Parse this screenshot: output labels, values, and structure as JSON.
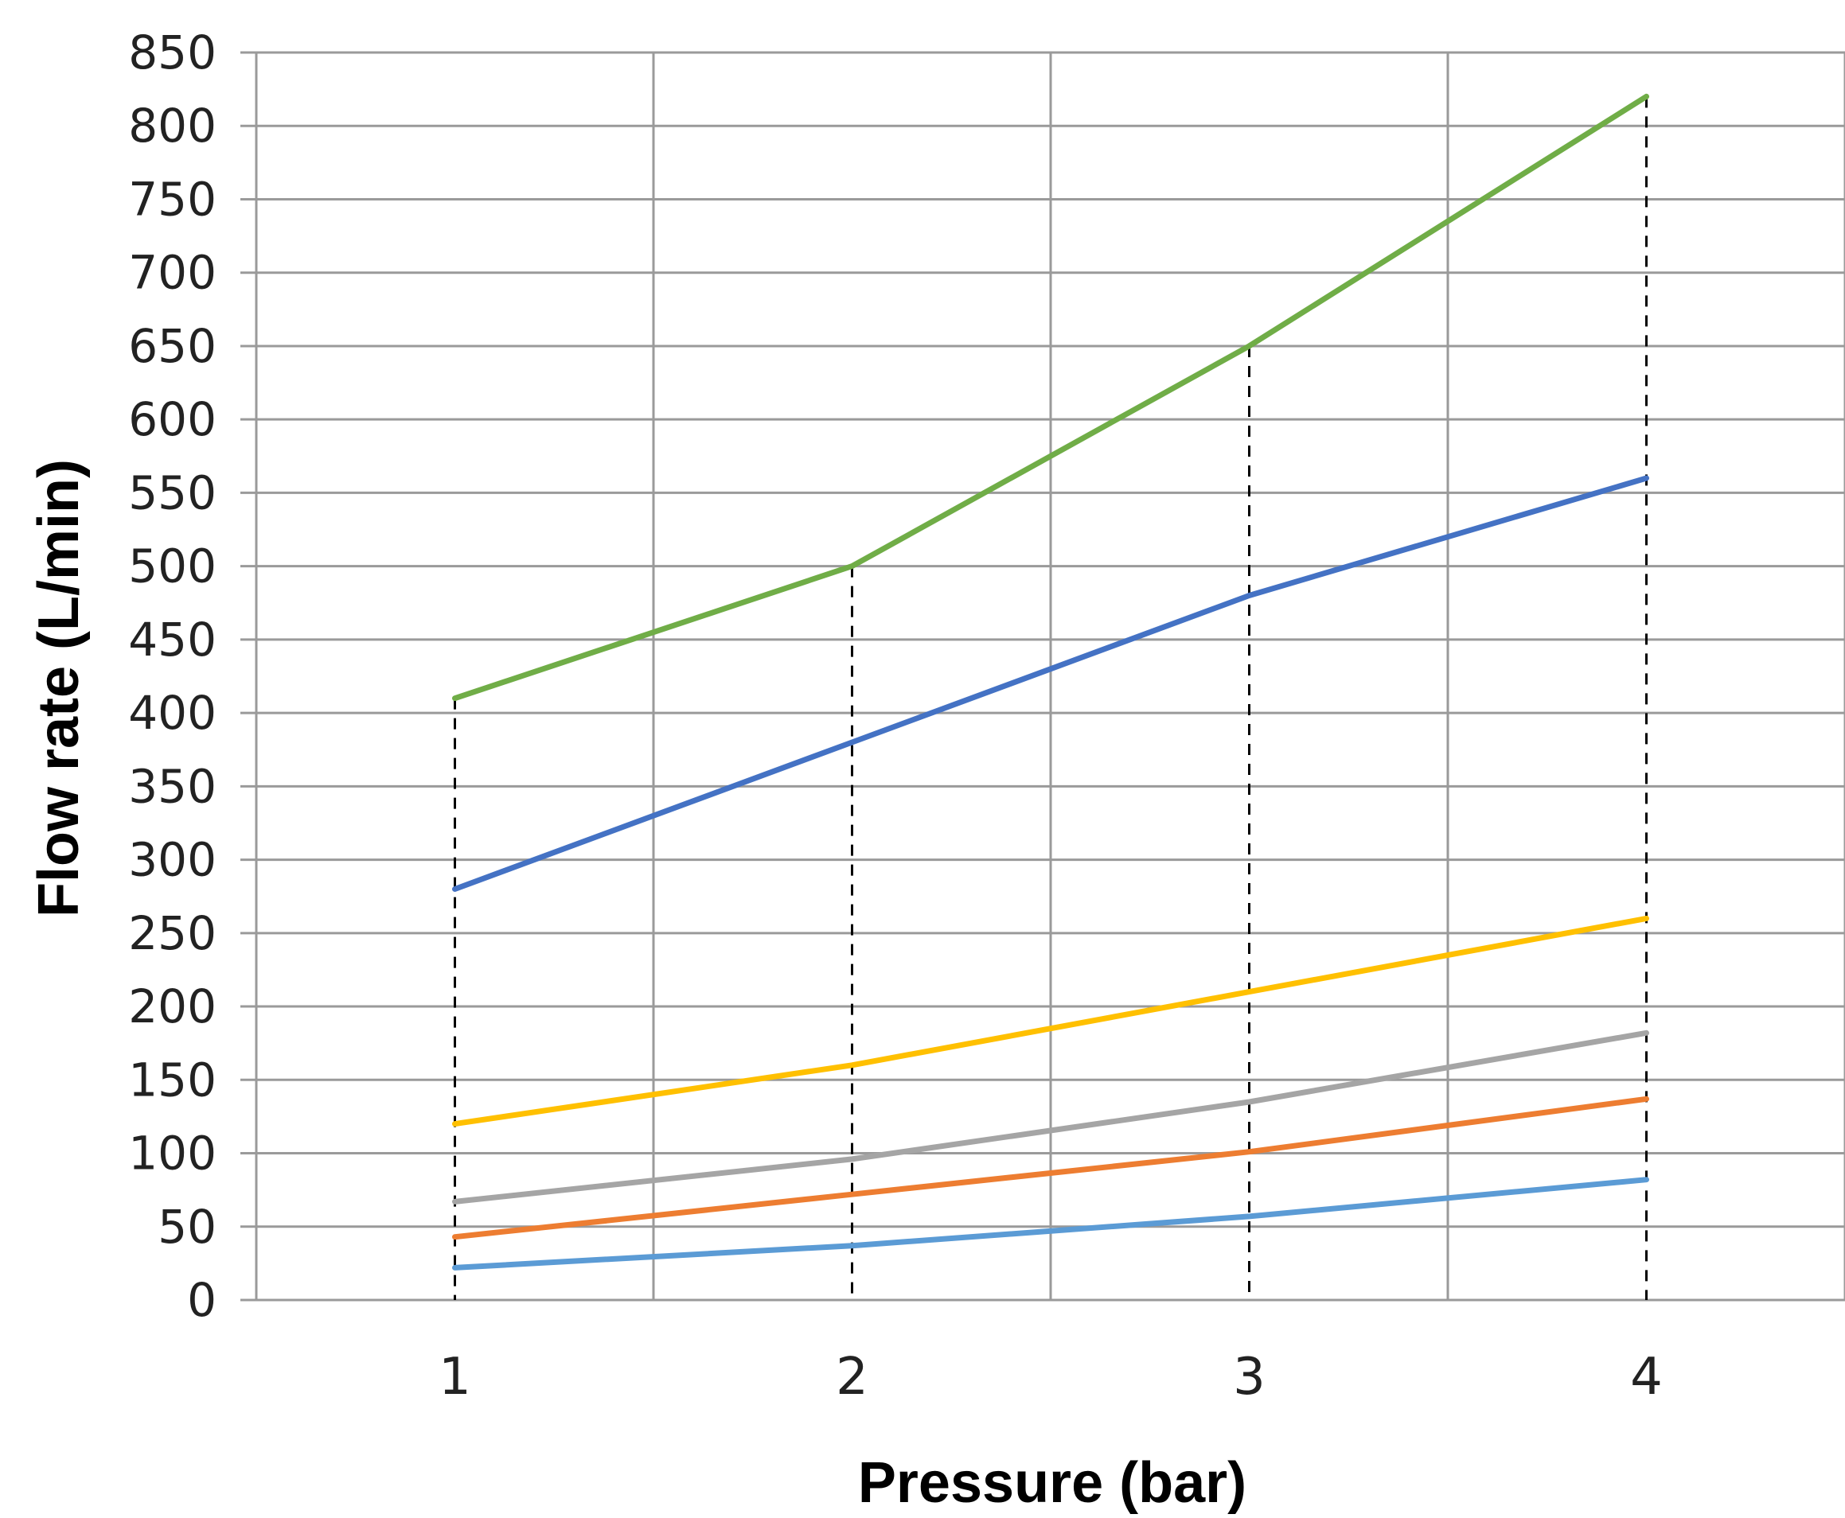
{
  "chart_data": {
    "type": "line",
    "title": "",
    "xlabel": "Pressure (bar)",
    "ylabel": "Flow rate (L/min)",
    "x": [
      1,
      2,
      3,
      4
    ],
    "x_tick_labels": [
      "1",
      "2",
      "3",
      "4"
    ],
    "xlim": [
      0.5,
      4.5
    ],
    "ylim": [
      0,
      850
    ],
    "y_ticks": [
      0,
      50,
      100,
      150,
      200,
      250,
      300,
      350,
      400,
      450,
      500,
      550,
      600,
      650,
      700,
      750,
      800,
      850
    ],
    "grid": true,
    "legend": "none",
    "drop_lines": {
      "style": "dashed",
      "x": [
        1,
        2,
        3,
        4
      ],
      "top_values": [
        410,
        500,
        650,
        820
      ]
    },
    "series": [
      {
        "color": "#70AD47",
        "values": [
          410,
          500,
          650,
          820
        ]
      },
      {
        "color": "#4472C4",
        "values": [
          280,
          380,
          480,
          560
        ]
      },
      {
        "color": "#FFC000",
        "values": [
          120,
          160,
          210,
          260
        ]
      },
      {
        "color": "#A5A5A5",
        "values": [
          67,
          96,
          135,
          182
        ]
      },
      {
        "color": "#ED7D31",
        "values": [
          43,
          72,
          101,
          137
        ]
      },
      {
        "color": "#5B9BD5",
        "values": [
          22,
          37,
          57,
          82
        ]
      }
    ]
  }
}
